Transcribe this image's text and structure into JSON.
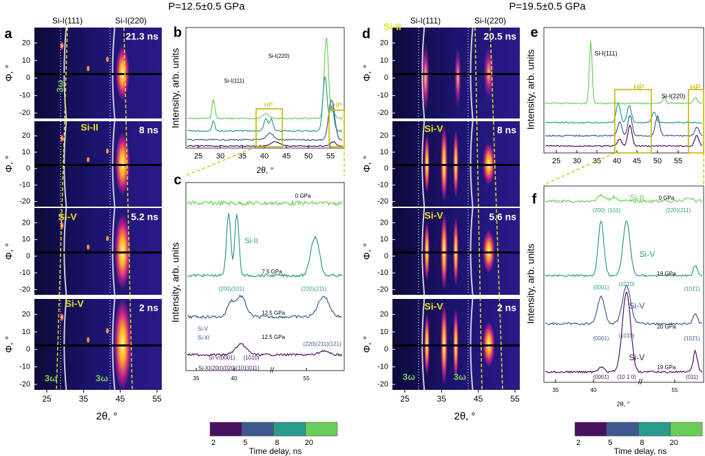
{
  "titles": [
    "P=12.5±0.5 GPa",
    "P=19.5±0.5 GPa"
  ],
  "left": {
    "label": "a",
    "peaks": [
      "Si-I(111)",
      "Si-I(220)"
    ],
    "frames": [
      {
        "time": "21.3 ns"
      },
      {
        "time": "8 ns",
        "phase": "Si-II"
      },
      {
        "time": "5.2 ns",
        "phase": "Si-V"
      },
      {
        "time": "2 ns",
        "phase": "Si-V"
      }
    ],
    "third": [
      "3ω",
      "3ω",
      "3ω"
    ],
    "yticks": [
      20,
      10,
      0,
      -10,
      -20
    ],
    "xticks": [
      25,
      35,
      45,
      55
    ],
    "xlabel": "2θ, °",
    "ylabel": "Φ, °"
  },
  "right": {
    "label": "d",
    "peaks": [
      "Si-I(111)",
      "Si-I(220)"
    ],
    "frames": [
      {
        "time": "20.5 ns",
        "phase": "Si-II"
      },
      {
        "time": "8 ns",
        "phase": "Si-V"
      },
      {
        "time": "5.6 ns",
        "phase": "Si-V"
      },
      {
        "time": "2 ns",
        "phase": "Si-V"
      }
    ],
    "third": [
      "3ω",
      "3ω"
    ],
    "yticks": [
      20,
      10,
      0,
      -10,
      -20
    ],
    "xticks": [
      25,
      35,
      45,
      55
    ],
    "xlabel": "2θ, °",
    "ylabel": "Φ, °"
  },
  "b": {
    "label": "b",
    "xticks": [
      25,
      30,
      35,
      40,
      45,
      50,
      55
    ],
    "xlabel": "2θ, °",
    "ylabel": "Intensity, arb. units",
    "annotations": [
      "Si-I(111)",
      "Si-I(220)",
      "HP",
      "HP"
    ]
  },
  "c": {
    "label": "c",
    "xticks": [
      35,
      40,
      55
    ],
    "ylabel": "Intensity, arb. units",
    "annotations": [
      "0 GPa",
      "Si-II",
      "7.5 GPa",
      "(200)(101)",
      "(220)(211)",
      "12.5 GPa",
      "Si-V",
      "Si-XI",
      "(220)(211)(121)",
      "12.5 GPa",
      "Si-V(0001)",
      "(101̄0)",
      "Si-XI(200)(020)(101)011)"
    ]
  },
  "e": {
    "label": "e",
    "xticks": [
      25,
      30,
      35,
      40,
      45,
      50,
      55
    ],
    "ylabel": "Intensity, arb. units",
    "annotations": [
      "Si-I(111)",
      "Si-I(220)",
      "HP",
      "HP"
    ]
  },
  "f": {
    "label": "f",
    "xticks": [
      35,
      40,
      55
    ],
    "xlabel": "2θ, °",
    "ylabel": "Intensity, arb. units",
    "annotations": [
      "Si-II",
      "0 GPa",
      "(200)",
      "(101)",
      "(220)(211)",
      "Si-V",
      "19 GPa",
      "(0001)",
      "(101̄0)",
      "(101̄1)",
      "Si-V",
      "20 GPa",
      "(0001)",
      "(101̄0)",
      "(101̄1)",
      "Si-V",
      "19 GPa",
      "(0001)",
      "(10 1̄ 0)",
      "(011)"
    ]
  },
  "colorbar": {
    "ticks": [
      2,
      5,
      8,
      20
    ],
    "label": "Time delay, ns",
    "colors": [
      "#4a1060",
      "#3e5a8e",
      "#2a9a8a",
      "#6acd5a"
    ]
  }
}
